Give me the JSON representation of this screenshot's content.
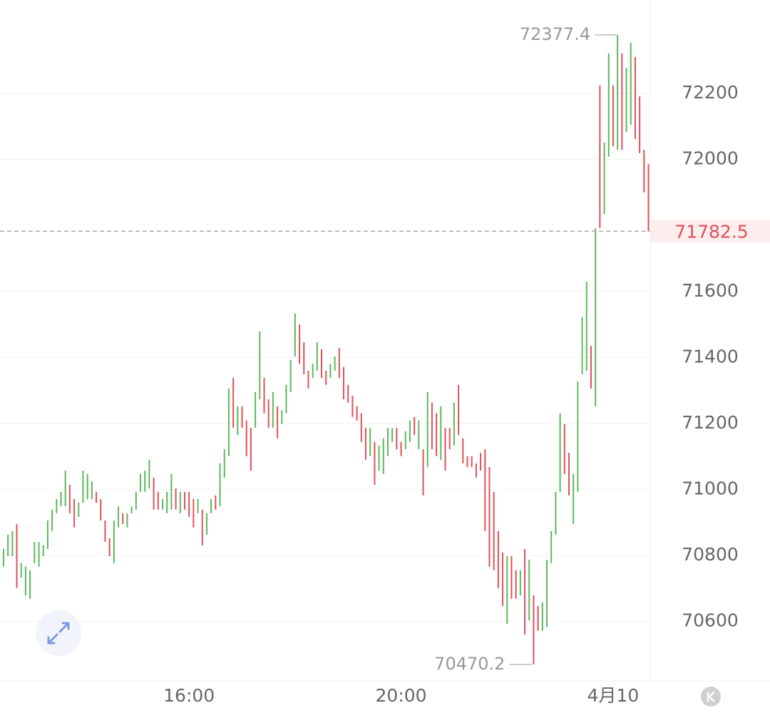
{
  "chart_data": {
    "type": "bar-range",
    "x": [
      750,
      755,
      760,
      765,
      770,
      775,
      780,
      785,
      790,
      795,
      800,
      805,
      810,
      815,
      820,
      825,
      830,
      835,
      840,
      845,
      850,
      855,
      860,
      865,
      870,
      875,
      880,
      885,
      890,
      895,
      900,
      905,
      910,
      915,
      920,
      925,
      930,
      935,
      940,
      945,
      950,
      955,
      960,
      965,
      970,
      975,
      980,
      985,
      990,
      995,
      1000,
      1005,
      1010,
      1015,
      1020,
      1025,
      1030,
      1035,
      1040,
      1045,
      1050,
      1055,
      1060,
      1065,
      1070,
      1075,
      1080,
      1085,
      1090,
      1095,
      1100,
      1105,
      1110,
      1115,
      1120,
      1125,
      1130,
      1135,
      1140,
      1145,
      1150,
      1155,
      1160,
      1165,
      1170,
      1175,
      1180,
      1185,
      1190,
      1195,
      1200,
      1205,
      1210,
      1215,
      1220,
      1225,
      1230,
      1235,
      1240,
      1245,
      1250,
      1255,
      1260,
      1265,
      1270,
      1275,
      1280,
      1285,
      1290,
      1295,
      1300,
      1305,
      1310,
      1315,
      1320,
      1325,
      1330,
      1335,
      1340,
      1345,
      1350,
      1355,
      1360,
      1365,
      1370,
      1375,
      1380,
      1385,
      1390,
      1395,
      1400,
      1405,
      1410,
      1415,
      1420,
      1425,
      1430,
      1435,
      1440,
      1445,
      1450,
      1455,
      1460,
      1465,
      1470,
      1475,
      1480
    ],
    "values": [
      [
        70766,
        70820
      ],
      [
        70798,
        70863
      ],
      [
        70798,
        70874
      ],
      [
        70895,
        70701
      ],
      [
        70733,
        70777
      ],
      [
        70679,
        70766
      ],
      [
        70669,
        70755
      ],
      [
        70777,
        70841
      ],
      [
        70766,
        70841
      ],
      [
        70798,
        70831
      ],
      [
        70820,
        70906
      ],
      [
        70874,
        70939
      ],
      [
        70928,
        70971
      ],
      [
        70949,
        70993
      ],
      [
        70949,
        71057
      ],
      [
        71014,
        70928
      ],
      [
        70971,
        70885
      ],
      [
        70917,
        70960
      ],
      [
        70960,
        71057
      ],
      [
        70971,
        71047
      ],
      [
        70971,
        71025
      ],
      [
        70993,
        70960
      ],
      [
        70971,
        70906
      ],
      [
        70906,
        70841
      ],
      [
        70852,
        70798
      ],
      [
        70777,
        70906
      ],
      [
        70885,
        70949
      ],
      [
        70928,
        70895
      ],
      [
        70885,
        70928
      ],
      [
        70928,
        70949
      ],
      [
        70939,
        70993
      ],
      [
        70993,
        71047
      ],
      [
        70993,
        71057
      ],
      [
        71003,
        71090
      ],
      [
        71036,
        70939
      ],
      [
        70993,
        70939
      ],
      [
        70939,
        70971
      ],
      [
        70928,
        70993
      ],
      [
        70939,
        71047
      ],
      [
        71003,
        70939
      ],
      [
        70928,
        70993
      ],
      [
        70993,
        70939
      ],
      [
        70993,
        70917
      ],
      [
        70971,
        70885
      ],
      [
        70928,
        70971
      ],
      [
        70939,
        70831
      ],
      [
        70863,
        70928
      ],
      [
        70928,
        70971
      ],
      [
        70982,
        70939
      ],
      [
        70949,
        71079
      ],
      [
        71036,
        71122
      ],
      [
        71101,
        71306
      ],
      [
        71338,
        71187
      ],
      [
        71165,
        71252
      ],
      [
        71252,
        71187
      ],
      [
        71209,
        71101
      ],
      [
        71187,
        71057
      ],
      [
        71187,
        71295
      ],
      [
        71273,
        71479
      ],
      [
        71338,
        71231
      ],
      [
        71273,
        71187
      ],
      [
        71187,
        71295
      ],
      [
        71252,
        71155
      ],
      [
        71198,
        71241
      ],
      [
        71231,
        71317
      ],
      [
        71295,
        71392
      ],
      [
        71403,
        71533
      ],
      [
        71500,
        71381
      ],
      [
        71446,
        71349
      ],
      [
        71360,
        71306
      ],
      [
        71338,
        71381
      ],
      [
        71360,
        71446
      ],
      [
        71425,
        71338
      ],
      [
        71360,
        71317
      ],
      [
        71338,
        71381
      ],
      [
        71360,
        71403
      ],
      [
        71429,
        71338
      ],
      [
        71371,
        71273
      ],
      [
        71317,
        71263
      ],
      [
        71284,
        71220
      ],
      [
        71252,
        71209
      ],
      [
        71231,
        71144
      ],
      [
        71187,
        71090
      ],
      [
        71101,
        71187
      ],
      [
        71144,
        71014
      ],
      [
        71057,
        71133
      ],
      [
        71047,
        71155
      ],
      [
        71101,
        71187
      ],
      [
        71144,
        71187
      ],
      [
        71187,
        71122
      ],
      [
        71144,
        71101
      ],
      [
        71122,
        71176
      ],
      [
        71144,
        71209
      ],
      [
        71220,
        71165
      ],
      [
        71122,
        71209
      ],
      [
        71122,
        70982
      ],
      [
        71068,
        71295
      ],
      [
        71263,
        71122
      ],
      [
        71231,
        71101
      ],
      [
        71090,
        71252
      ],
      [
        71187,
        71057
      ],
      [
        71187,
        71122
      ],
      [
        71133,
        71263
      ],
      [
        71317,
        71165
      ],
      [
        71155,
        71079
      ],
      [
        71101,
        71068
      ],
      [
        71101,
        71068
      ],
      [
        71079,
        71036
      ],
      [
        71111,
        71057
      ],
      [
        71122,
        70874
      ],
      [
        71068,
        70766
      ],
      [
        70993,
        70755
      ],
      [
        70874,
        70701
      ],
      [
        70809,
        70647
      ],
      [
        70593,
        70798
      ],
      [
        70798,
        70669
      ],
      [
        70755,
        70669
      ],
      [
        70679,
        70755
      ],
      [
        70820,
        70561
      ],
      [
        70604,
        70787
      ],
      [
        70679,
        70470.2
      ],
      [
        70647,
        70572
      ],
      [
        70572,
        70658
      ],
      [
        70583,
        70787
      ],
      [
        70777,
        70874
      ],
      [
        70863,
        70993
      ],
      [
        70993,
        71231
      ],
      [
        71198,
        71047
      ],
      [
        71111,
        70982
      ],
      [
        70895,
        71047
      ],
      [
        70993,
        71327
      ],
      [
        71349,
        71522
      ],
      [
        71360,
        71630
      ],
      [
        71435,
        71306
      ],
      [
        71252,
        71792
      ],
      [
        72224,
        71792
      ],
      [
        71835,
        72051
      ],
      [
        72008,
        72321
      ],
      [
        72224,
        72040
      ],
      [
        72029,
        72377.4
      ],
      [
        72321,
        72029
      ],
      [
        72083,
        72278
      ],
      [
        72105,
        72353
      ],
      [
        72310,
        72062
      ],
      [
        72191,
        72019
      ],
      [
        72029,
        71900
      ],
      [
        71986,
        71782.5
      ]
    ],
    "up_color": "#5cb85c",
    "down_color": "#e0505a",
    "xlim": [
      746,
      1482
    ],
    "xticks": [
      {
        "value": 960,
        "label": "16:00"
      },
      {
        "value": 1200,
        "label": "20:00"
      },
      {
        "value": 1440,
        "label": "4月10"
      }
    ],
    "ylim": [
      70420,
      72483
    ],
    "yticks": [
      70600,
      70800,
      71000,
      71200,
      71400,
      71600,
      72000,
      72200
    ],
    "grid": true,
    "high": 72377.4,
    "low": 70470.2,
    "last": 71782.5
  }
}
